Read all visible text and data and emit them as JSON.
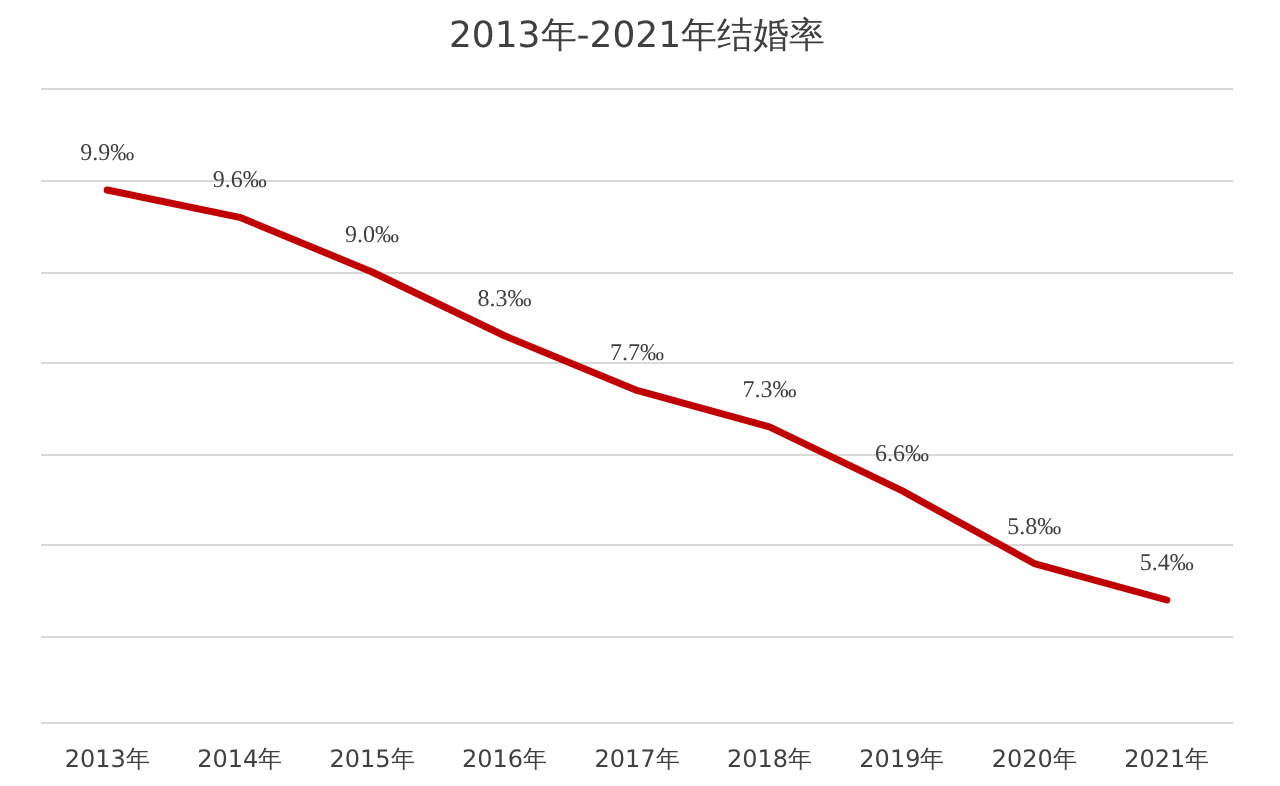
{
  "chart_data": {
    "type": "line",
    "title": "2013年-2021年结婚率",
    "categories": [
      "2013年",
      "2014年",
      "2015年",
      "2016年",
      "2017年",
      "2018年",
      "2019年",
      "2020年",
      "2021年"
    ],
    "series": [
      {
        "color": "#c00000",
        "values": [
          9.9,
          9.6,
          9.0,
          8.3,
          7.7,
          7.3,
          6.6,
          5.8,
          5.4
        ],
        "value_labels": [
          "9.9‰",
          "9.6‰",
          "9.0‰",
          "8.3‰",
          "7.7‰",
          "7.3‰",
          "6.6‰",
          "5.8‰",
          "5.4‰"
        ]
      }
    ],
    "grid": "y",
    "tick_labels": "x",
    "marker": "none",
    "line_style": "solid"
  }
}
